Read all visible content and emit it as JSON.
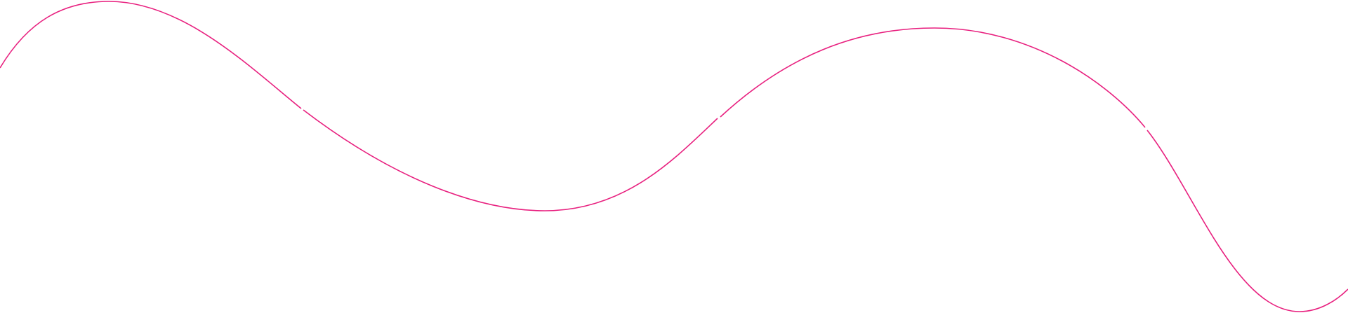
{
  "colors": {
    "background": "#ffffff",
    "line": "#e8207f"
  }
}
